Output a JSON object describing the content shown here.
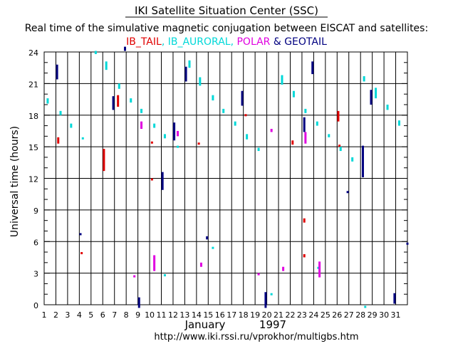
{
  "chart_data": {
    "type": "scatter",
    "title": "IKI Satellite Situation Center (SSC)",
    "subtitle": "Real time of the simulative magnetic conjugation between EISCAT and satellites:",
    "legend_line": {
      "parts": [
        {
          "text": "IB_TAIL",
          "color": "#e00000"
        },
        {
          "text": ", ",
          "color": "#00d0d0"
        },
        {
          "text": "IB_AURORAL",
          "color": "#00d8d8"
        },
        {
          "text": ", ",
          "color": "#00d8d8"
        },
        {
          "text": "POLAR",
          "color": "#e000e0"
        },
        {
          "text": " & ",
          "color": "#000080"
        },
        {
          "text": "GEOTAIL",
          "color": "#000080"
        }
      ]
    },
    "ylabel": "Universal time (hours)",
    "xlabel_month": "January",
    "xlabel_year": "1997",
    "url": "http://www.iki.rssi.ru/vprokhor/multigbs.htm",
    "xlim": [
      1,
      32
    ],
    "ylim": [
      0,
      24
    ],
    "y_ticks": [
      "0",
      "3",
      "6",
      "9",
      "12",
      "15",
      "18",
      "21",
      "24"
    ],
    "x_ticks": [
      "1",
      "2",
      "3",
      "4",
      "5",
      "6",
      "7",
      "8",
      "9",
      "10",
      "11",
      "12",
      "13",
      "14",
      "15",
      "16",
      "17",
      "18",
      "19",
      "20",
      "21",
      "22",
      "23",
      "24",
      "25",
      "26",
      "27",
      "28",
      "29",
      "30",
      "31"
    ],
    "colors": {
      "IB_TAIL": "#e00000",
      "IB_AURORAL": "#00d8d8",
      "POLAR": "#e000e0",
      "GEOTAIL": "#000080"
    },
    "series": [
      {
        "name": "IB_TAIL",
        "segments": [
          [
            2.2,
            15.3,
            15.9
          ],
          [
            4.2,
            4.8,
            5.0
          ],
          [
            6.1,
            12.7,
            14.8
          ],
          [
            7.3,
            18.8,
            19.9
          ],
          [
            10.2,
            15.3,
            15.5
          ],
          [
            10.2,
            11.9,
            12.0
          ],
          [
            14.2,
            15.2,
            15.4
          ],
          [
            18.2,
            18.1,
            18.1
          ],
          [
            22.2,
            15.2,
            15.6
          ],
          [
            23.2,
            7.8,
            8.2
          ],
          [
            23.2,
            4.5,
            4.8
          ],
          [
            26.1,
            17.4,
            18.4
          ],
          [
            26.2,
            15.0,
            15.2
          ]
        ]
      },
      {
        "name": "IB_AURORAL",
        "segments": [
          [
            1.3,
            19.1,
            19.6
          ],
          [
            2.4,
            18.0,
            18.4
          ],
          [
            3.3,
            16.8,
            17.2
          ],
          [
            4.3,
            15.7,
            15.9
          ],
          [
            5.4,
            23.8,
            24.1
          ],
          [
            6.3,
            22.3,
            23.1
          ],
          [
            7.4,
            20.5,
            21.0
          ],
          [
            8.4,
            19.2,
            19.6
          ],
          [
            9.3,
            18.2,
            18.6
          ],
          [
            10.4,
            16.8,
            17.2
          ],
          [
            11.3,
            15.8,
            16.2
          ],
          [
            11.3,
            2.7,
            2.9
          ],
          [
            12.4,
            14.9,
            15.1
          ],
          [
            13.4,
            22.5,
            23.2
          ],
          [
            14.3,
            20.8,
            21.6
          ],
          [
            15.4,
            19.4,
            19.9
          ],
          [
            15.4,
            5.3,
            5.5
          ],
          [
            16.3,
            18.2,
            18.6
          ],
          [
            17.3,
            17.0,
            17.4
          ],
          [
            18.3,
            15.7,
            16.2
          ],
          [
            19.3,
            14.6,
            14.9
          ],
          [
            20.4,
            0.9,
            1.1
          ],
          [
            21.3,
            20.9,
            21.8
          ],
          [
            22.3,
            19.7,
            20.3
          ],
          [
            23.3,
            18.2,
            18.6
          ],
          [
            24.3,
            17.0,
            17.4
          ],
          [
            24.4,
            3.4,
            3.6
          ],
          [
            25.3,
            15.9,
            16.2
          ],
          [
            26.3,
            14.6,
            15.0
          ],
          [
            27.3,
            13.6,
            14.0
          ],
          [
            28.3,
            21.2,
            21.7
          ],
          [
            28.4,
            -0.3,
            -0.1
          ],
          [
            29.3,
            19.6,
            20.6
          ],
          [
            30.3,
            18.5,
            19.0
          ],
          [
            31.3,
            17.0,
            17.5
          ]
        ]
      },
      {
        "name": "POLAR",
        "segments": [
          [
            8.7,
            2.6,
            2.8
          ],
          [
            9.3,
            16.7,
            17.4
          ],
          [
            10.4,
            3.2,
            4.7
          ],
          [
            12.4,
            16.0,
            16.5
          ],
          [
            14.4,
            3.6,
            4.0
          ],
          [
            19.3,
            2.8,
            3.0
          ],
          [
            20.4,
            16.4,
            16.7
          ],
          [
            21.4,
            3.2,
            3.6
          ],
          [
            23.3,
            15.3,
            16.4
          ],
          [
            24.5,
            2.6,
            4.1
          ]
        ]
      },
      {
        "name": "GEOTAIL",
        "segments": [
          [
            2.1,
            21.4,
            22.8
          ],
          [
            4.1,
            6.6,
            6.8
          ],
          [
            6.9,
            18.5,
            19.8
          ],
          [
            7.9,
            24.1,
            24.5
          ],
          [
            9.1,
            -0.3,
            0.7
          ],
          [
            11.1,
            10.9,
            12.6
          ],
          [
            12.1,
            15.6,
            17.3
          ],
          [
            13.1,
            21.2,
            22.6
          ],
          [
            14.9,
            6.2,
            6.5
          ],
          [
            17.9,
            18.9,
            20.3
          ],
          [
            19.9,
            -0.3,
            1.2
          ],
          [
            23.2,
            16.4,
            17.8
          ],
          [
            23.9,
            21.9,
            23.1
          ],
          [
            26.9,
            10.6,
            10.8
          ],
          [
            28.2,
            12.1,
            15.1
          ],
          [
            28.9,
            19.0,
            20.4
          ],
          [
            30.9,
            0.1,
            1.1
          ],
          [
            32.0,
            5.7,
            5.9
          ]
        ]
      }
    ]
  }
}
